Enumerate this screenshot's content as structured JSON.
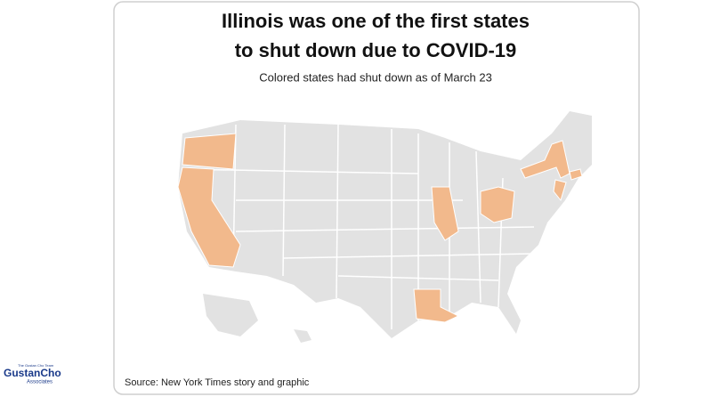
{
  "header": {
    "title_line_1": "Illinois was one of the first states",
    "title_line_2": "to shut down due to COVID-19",
    "subtitle": "Colored states had shut down as of March 23"
  },
  "map": {
    "base_color": "#e2e2e2",
    "highlight_color": "#f2b98c"
  },
  "source": "Source: New York Times story and graphic",
  "logo": {
    "tagline": "The Gustan Cho Team",
    "name": "GustanCho",
    "sub": "Associates"
  }
}
